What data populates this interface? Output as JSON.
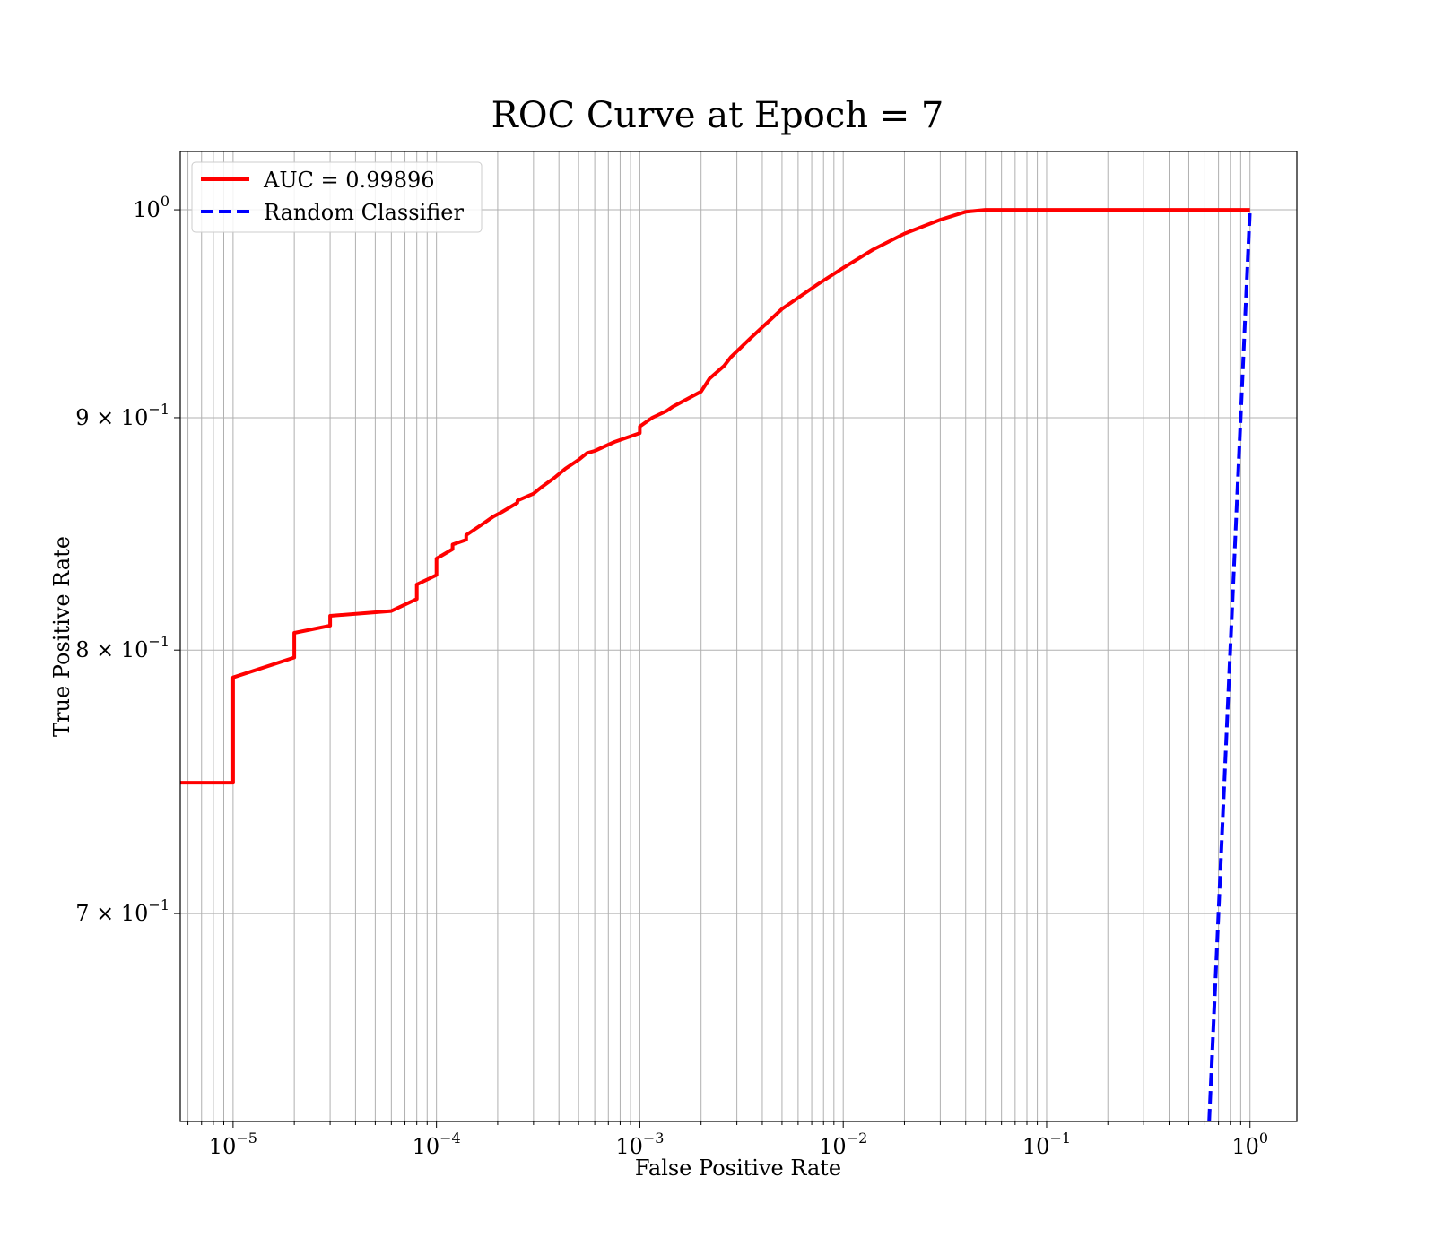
{
  "chart_data": {
    "type": "line",
    "title": "ROC Curve at Epoch = 7",
    "xlabel": "False Positive Rate",
    "ylabel": "True Positive Rate",
    "xscale": "log",
    "yscale": "log",
    "xlim": [
      5.5e-06,
      1.7
    ],
    "ylim": [
      0.63,
      1.03
    ],
    "grid": true,
    "grid_minor": true,
    "legend_position": "top-left",
    "x_ticks": [
      {
        "base": "10",
        "exp": "−5",
        "value": 1e-05
      },
      {
        "base": "10",
        "exp": "−4",
        "value": 0.0001
      },
      {
        "base": "10",
        "exp": "−3",
        "value": 0.001
      },
      {
        "base": "10",
        "exp": "−2",
        "value": 0.01
      },
      {
        "base": "10",
        "exp": "−1",
        "value": 0.1
      },
      {
        "base": "10",
        "exp": "0",
        "value": 1
      }
    ],
    "y_ticks": [
      {
        "mant": "7 × ",
        "base": "10",
        "exp": "−1",
        "value": 0.7
      },
      {
        "mant": "8 × ",
        "base": "10",
        "exp": "−1",
        "value": 0.8
      },
      {
        "mant": "9 × ",
        "base": "10",
        "exp": "−1",
        "value": 0.9
      },
      {
        "mant": "",
        "base": "10",
        "exp": "0",
        "value": 1.0
      }
    ],
    "series": [
      {
        "name": "AUC = 0.99896",
        "color": "#ff0000",
        "style": "solid",
        "x": [
          5.5e-06,
          1e-05,
          1e-05,
          2e-05,
          2e-05,
          3e-05,
          3e-05,
          6e-05,
          8e-05,
          8e-05,
          0.0001,
          0.0001,
          0.00012,
          0.00012,
          0.00014,
          0.00014,
          0.00017,
          0.00019,
          0.00021,
          0.00025,
          0.00025,
          0.0003,
          0.00033,
          0.00038,
          0.00043,
          0.0005,
          0.00055,
          0.0006,
          0.00075,
          0.001,
          0.001,
          0.00115,
          0.00135,
          0.00145,
          0.002,
          0.0022,
          0.0026,
          0.0028,
          0.0035,
          0.005,
          0.0075,
          0.01,
          0.014,
          0.02,
          0.03,
          0.04,
          0.05,
          0.06,
          0.1,
          0.3,
          1.0
        ],
        "y": [
          0.748,
          0.748,
          0.789,
          0.797,
          0.807,
          0.81,
          0.814,
          0.816,
          0.821,
          0.827,
          0.831,
          0.838,
          0.842,
          0.844,
          0.846,
          0.848,
          0.853,
          0.856,
          0.858,
          0.862,
          0.863,
          0.866,
          0.869,
          0.873,
          0.877,
          0.881,
          0.884,
          0.885,
          0.889,
          0.893,
          0.896,
          0.9,
          0.903,
          0.905,
          0.912,
          0.918,
          0.924,
          0.928,
          0.937,
          0.951,
          0.963,
          0.971,
          0.98,
          0.988,
          0.995,
          0.999,
          1.0,
          1.0,
          1.0,
          1.0,
          1.0
        ]
      },
      {
        "name": "Random Classifier",
        "color": "#0000ff",
        "style": "dashed",
        "x": [
          0.63,
          1.0
        ],
        "y": [
          0.63,
          1.0
        ]
      }
    ]
  }
}
